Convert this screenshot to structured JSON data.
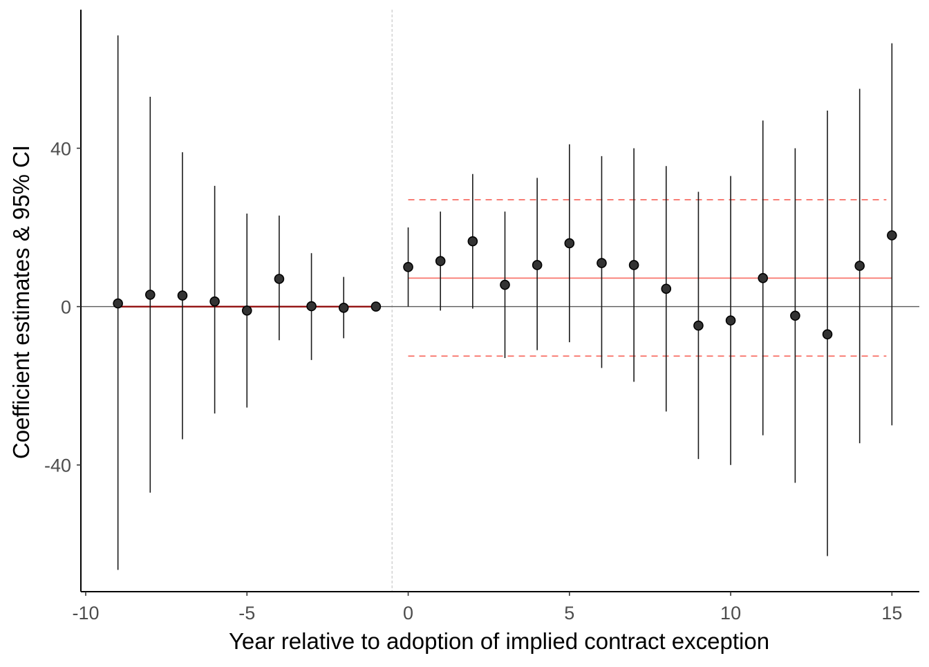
{
  "chart_data": {
    "type": "scatter",
    "subtype": "event-study coefficient plot with 95% confidence intervals",
    "title": "",
    "xlabel": "Year relative to adoption of implied contract exception",
    "ylabel": "Coefficient estimates & 95% CI",
    "xlim": [
      -10.15,
      15.85
    ],
    "ylim": [
      -72,
      75
    ],
    "x_ticks": [
      -10,
      -5,
      0,
      5,
      10,
      15
    ],
    "x_tick_labels": [
      "-10",
      "-5",
      "0",
      "5",
      "10",
      "15"
    ],
    "y_ticks": [
      -40,
      0,
      40
    ],
    "y_tick_labels": [
      "-40",
      "0",
      "40"
    ],
    "grid": false,
    "legend": "none",
    "series": [
      {
        "points": [
          {
            "x": -9,
            "y": 0.8,
            "lo": -66.5,
            "hi": 68.5
          },
          {
            "x": -8,
            "y": 3.0,
            "lo": -47.0,
            "hi": 53.0
          },
          {
            "x": -7,
            "y": 2.8,
            "lo": -33.5,
            "hi": 39.0
          },
          {
            "x": -6,
            "y": 1.3,
            "lo": -27.0,
            "hi": 30.5
          },
          {
            "x": -5,
            "y": -1.0,
            "lo": -25.5,
            "hi": 23.5
          },
          {
            "x": -4,
            "y": 7.0,
            "lo": -8.5,
            "hi": 23.0
          },
          {
            "x": -3,
            "y": 0.1,
            "lo": -13.5,
            "hi": 13.5
          },
          {
            "x": -2,
            "y": -0.3,
            "lo": -8.0,
            "hi": 7.5
          },
          {
            "x": -1,
            "y": 0.0,
            "lo": 0.0,
            "hi": 0.0
          },
          {
            "x": 0,
            "y": 10.0,
            "lo": 0.0,
            "hi": 20.0
          },
          {
            "x": 1,
            "y": 11.5,
            "lo": -1.0,
            "hi": 24.0
          },
          {
            "x": 2,
            "y": 16.5,
            "lo": -0.5,
            "hi": 33.5
          },
          {
            "x": 3,
            "y": 5.5,
            "lo": -13.0,
            "hi": 24.0
          },
          {
            "x": 4,
            "y": 10.5,
            "lo": -11.0,
            "hi": 32.5
          },
          {
            "x": 5,
            "y": 16.0,
            "lo": -9.0,
            "hi": 41.0
          },
          {
            "x": 6,
            "y": 11.0,
            "lo": -15.5,
            "hi": 38.0
          },
          {
            "x": 7,
            "y": 10.5,
            "lo": -19.0,
            "hi": 40.0
          },
          {
            "x": 8,
            "y": 4.5,
            "lo": -26.5,
            "hi": 35.5
          },
          {
            "x": 9,
            "y": -4.8,
            "lo": -38.5,
            "hi": 29.0
          },
          {
            "x": 10,
            "y": -3.5,
            "lo": -40.0,
            "hi": 33.0
          },
          {
            "x": 11,
            "y": 7.2,
            "lo": -32.5,
            "hi": 47.0
          },
          {
            "x": 12,
            "y": -2.3,
            "lo": -44.5,
            "hi": 40.0
          },
          {
            "x": 13,
            "y": -7.0,
            "lo": -63.0,
            "hi": 49.5
          },
          {
            "x": 14,
            "y": 10.3,
            "lo": -34.5,
            "hi": 55.0
          },
          {
            "x": 15,
            "y": 18.0,
            "lo": -30.0,
            "hi": 66.5
          }
        ]
      }
    ],
    "reference_lines": {
      "horizontal_zero": 0,
      "vertical_dashed_x": -0.5,
      "pre_period_mean": {
        "x_start": -9,
        "x_end": -1,
        "y": 0.0
      },
      "post_period_mean": {
        "x_start": 0,
        "x_end": 15,
        "y": 7.2
      },
      "post_period_ci": {
        "x_start": 0,
        "x_end": 15,
        "lo": -12.5,
        "hi": 27.0
      }
    },
    "colors": {
      "points": "#333333",
      "error_bars": "#1a1a1a",
      "mean_line": "#f8766d",
      "pre_mean_line": "#8b0000",
      "ci_dashed": "#f8766d",
      "zero_line": "#595959",
      "vertical_dashed": "#c8c8c8"
    }
  }
}
